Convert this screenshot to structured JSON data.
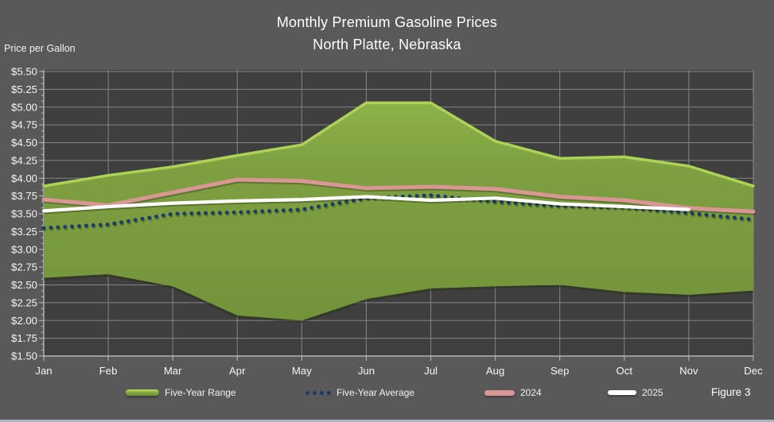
{
  "title": {
    "line1": "Monthly Premium Gasoline Prices",
    "line2": "North Platte, Nebraska"
  },
  "y_axis_label": "Price per Gallon",
  "figure_label": "Figure 3",
  "legend": [
    {
      "name": "Five-Year Range"
    },
    {
      "name": "Five-Year Average"
    },
    {
      "name": "2024"
    },
    {
      "name": "2025"
    }
  ],
  "colors": {
    "background": "#595959",
    "plot_background": "#3F3F3F",
    "gridline": "#C8C8C8",
    "axis": "#C8C8C8",
    "text": "#FFFFFF",
    "band_fill_top": "#8DB14A",
    "band_fill_mid": "#7EA041",
    "band_fill_bottom": "#73933B",
    "band_highlight": "#ACD355",
    "band_bottom_shadow": "#263012",
    "five_year_average": "#1C3C64",
    "line_2024": "#D99694",
    "line_2025": "#FFFFFF",
    "footer_strip": "#A9B4BE"
  },
  "chart_data": {
    "type": "area",
    "title": "Monthly Premium Gasoline Prices",
    "subtitle": "North Platte, Nebraska",
    "ylabel": "Price per Gallon",
    "xlabel": "",
    "ylim": [
      1.5,
      5.5
    ],
    "ytick_step": 0.25,
    "ytick_format": "$0.00",
    "grid": true,
    "legend_position": "bottom",
    "categories": [
      "Jan",
      "Feb",
      "Mar",
      "Apr",
      "May",
      "Jun",
      "Jul",
      "Aug",
      "Sep",
      "Oct",
      "Nov",
      "Dec"
    ],
    "series": [
      {
        "name": "Five-Year Range",
        "type": "band",
        "upper": [
          3.89,
          4.04,
          4.16,
          4.32,
          4.47,
          5.06,
          5.06,
          4.52,
          4.28,
          4.3,
          4.17,
          3.89
        ],
        "lower": [
          2.6,
          2.65,
          2.48,
          2.07,
          2.0,
          2.3,
          2.45,
          2.48,
          2.5,
          2.4,
          2.36,
          2.42
        ]
      },
      {
        "name": "Five-Year Average",
        "type": "dotted-line",
        "values": [
          3.3,
          3.35,
          3.5,
          3.52,
          3.56,
          3.72,
          3.76,
          3.67,
          3.61,
          3.59,
          3.51,
          3.42
        ]
      },
      {
        "name": "2024",
        "type": "line",
        "values": [
          3.7,
          3.62,
          3.8,
          3.98,
          3.96,
          3.86,
          3.88,
          3.85,
          3.74,
          3.69,
          3.58,
          3.53
        ]
      },
      {
        "name": "2025",
        "type": "line",
        "values": [
          3.54,
          3.6,
          3.65,
          3.68,
          3.7,
          3.74,
          3.69,
          3.72,
          3.64,
          3.6,
          3.56
        ]
      }
    ]
  }
}
